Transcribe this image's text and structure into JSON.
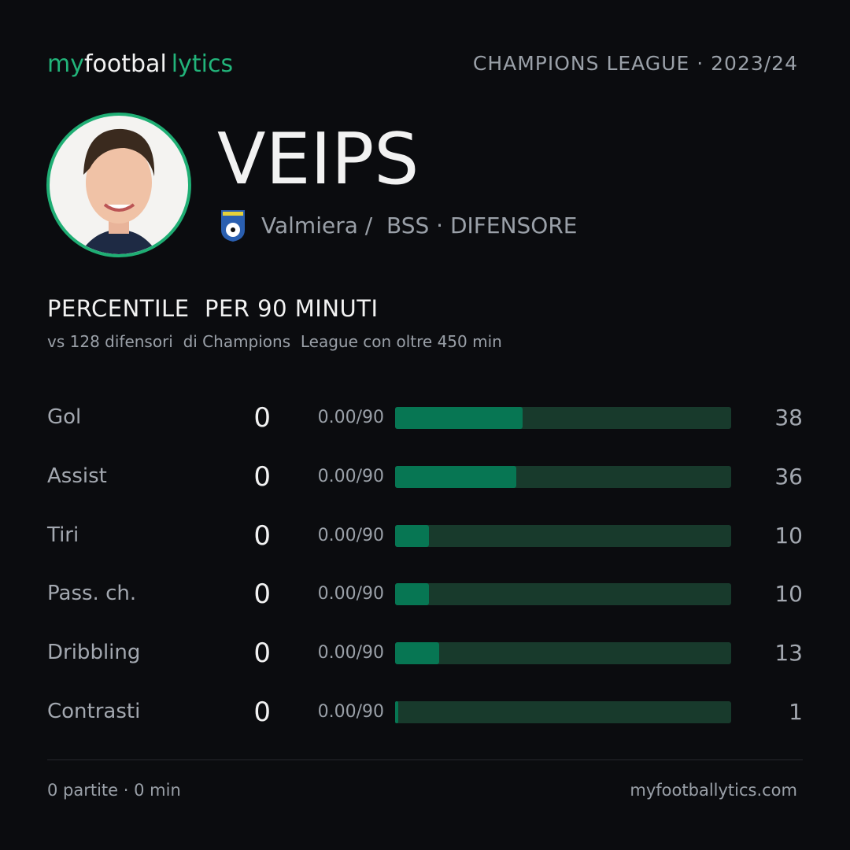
{
  "brand": {
    "part1": "my",
    "part2": "footbal",
    "part3": "lytics"
  },
  "competition": "CHAMPIONS LEAGUE · 2023/24",
  "player": {
    "name": "VEIPS",
    "club": "Valmiera /  BSS · DIFENSORE"
  },
  "section": {
    "title": "PERCENTILE  PER 90 MINUTI",
    "subtitle": "vs 128 difensori  di Champions  League con oltre 450 min"
  },
  "scale": {
    "xlim": [
      0,
      100
    ],
    "bar_color": "#077653",
    "track_color": "#183a2c"
  },
  "rows": [
    {
      "label": "Gol",
      "value": 0,
      "per90": "0.00/90",
      "percentile": 38
    },
    {
      "label": "Assist",
      "value": 0,
      "per90": "0.00/90",
      "percentile": 36
    },
    {
      "label": "Tiri",
      "value": 0,
      "per90": "0.00/90",
      "percentile": 10
    },
    {
      "label": "Pass. ch.",
      "value": 0,
      "per90": "0.00/90",
      "percentile": 10
    },
    {
      "label": "Dribbling",
      "value": 0,
      "per90": "0.00/90",
      "percentile": 13
    },
    {
      "label": "Contrasti",
      "value": 0,
      "per90": "0.00/90",
      "percentile": 1
    }
  ],
  "footer": {
    "left": "0 partite · 0 min",
    "right": "myfootballytics.com"
  }
}
